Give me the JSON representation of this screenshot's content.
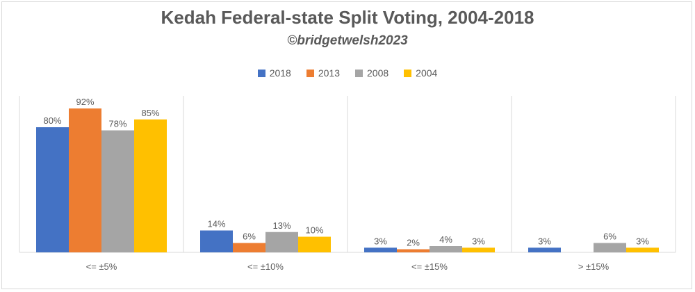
{
  "chart_data": {
    "type": "bar",
    "title": "Kedah Federal-state Split Voting, 2004-2018",
    "subtitle": "©bridgetwelsh2023",
    "categories": [
      "<= ±5%",
      "<= ±10%",
      "<= ±15%",
      "> ±15%"
    ],
    "series": [
      {
        "name": "2018",
        "color": "#4472C4",
        "values": [
          80,
          14,
          3,
          3
        ],
        "labels": [
          "80%",
          "14%",
          "3%",
          "3%"
        ]
      },
      {
        "name": "2013",
        "color": "#ED7D31",
        "values": [
          92,
          6,
          2,
          null
        ],
        "labels": [
          "92%",
          "6%",
          "2%",
          ""
        ]
      },
      {
        "name": "2008",
        "color": "#A5A5A5",
        "values": [
          78,
          13,
          4,
          6
        ],
        "labels": [
          "78%",
          "13%",
          "4%",
          "6%"
        ]
      },
      {
        "name": "2004",
        "color": "#FFC000",
        "values": [
          85,
          10,
          3,
          3
        ],
        "labels": [
          "85%",
          "10%",
          "3%",
          "3%"
        ]
      }
    ],
    "ylim": [
      0,
      100
    ],
    "grid": false,
    "legend_position": "top",
    "xlabel": "",
    "ylabel": ""
  }
}
